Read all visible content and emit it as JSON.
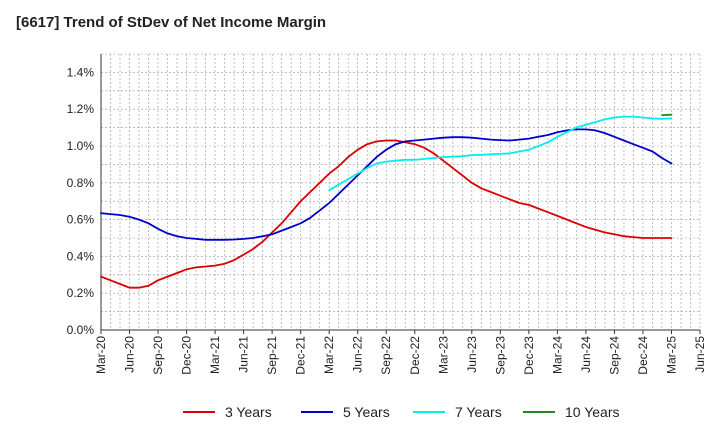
{
  "chart_data": {
    "type": "line",
    "title": "[6617]  Trend of StDev of Net Income Margin",
    "xlabel": "",
    "ylabel": "",
    "ylim": [
      0,
      1.5
    ],
    "yticks": [
      0.0,
      0.2,
      0.4,
      0.6,
      0.8,
      1.0,
      1.2,
      1.4
    ],
    "ytick_labels": [
      "0.0%",
      "0.2%",
      "0.4%",
      "0.6%",
      "0.8%",
      "1.0%",
      "1.2%",
      "1.4%"
    ],
    "x_tick_labels": [
      "Mar-20",
      "Jun-20",
      "Sep-20",
      "Dec-20",
      "Mar-21",
      "Jun-21",
      "Sep-21",
      "Dec-21",
      "Mar-22",
      "Jun-22",
      "Sep-22",
      "Dec-22",
      "Mar-23",
      "Jun-23",
      "Sep-23",
      "Dec-23",
      "Mar-24",
      "Jun-24",
      "Sep-24",
      "Dec-24",
      "Mar-25",
      "Jun-25"
    ],
    "grid": true,
    "legend_position": "bottom",
    "series": [
      {
        "name": "3 Years",
        "color": "#dd0000",
        "x": [
          "Mar-20",
          "Apr-20",
          "May-20",
          "Jun-20",
          "Jul-20",
          "Aug-20",
          "Sep-20",
          "Oct-20",
          "Nov-20",
          "Dec-20",
          "Jan-21",
          "Feb-21",
          "Mar-21",
          "Apr-21",
          "May-21",
          "Jun-21",
          "Jul-21",
          "Aug-21",
          "Sep-21",
          "Oct-21",
          "Nov-21",
          "Dec-21",
          "Jan-22",
          "Feb-22",
          "Mar-22",
          "Apr-22",
          "May-22",
          "Jun-22",
          "Jul-22",
          "Aug-22",
          "Sep-22",
          "Oct-22",
          "Nov-22",
          "Dec-22",
          "Jan-23",
          "Feb-23",
          "Mar-23",
          "Apr-23",
          "May-23",
          "Jun-23",
          "Jul-23",
          "Aug-23",
          "Sep-23",
          "Oct-23",
          "Nov-23",
          "Dec-23",
          "Jan-24",
          "Feb-24",
          "Mar-24",
          "Apr-24",
          "May-24",
          "Jun-24",
          "Jul-24",
          "Aug-24",
          "Sep-24",
          "Oct-24",
          "Nov-24",
          "Dec-24",
          "Jan-25",
          "Feb-25",
          "Mar-25"
        ],
        "values": [
          0.29,
          0.27,
          0.25,
          0.23,
          0.23,
          0.24,
          0.27,
          0.29,
          0.31,
          0.33,
          0.34,
          0.345,
          0.35,
          0.36,
          0.38,
          0.41,
          0.44,
          0.48,
          0.53,
          0.58,
          0.64,
          0.7,
          0.75,
          0.8,
          0.85,
          0.89,
          0.94,
          0.98,
          1.01,
          1.025,
          1.03,
          1.03,
          1.02,
          1.01,
          0.99,
          0.96,
          0.92,
          0.88,
          0.84,
          0.8,
          0.77,
          0.75,
          0.73,
          0.71,
          0.69,
          0.68,
          0.66,
          0.64,
          0.62,
          0.6,
          0.58,
          0.56,
          0.545,
          0.53,
          0.52,
          0.51,
          0.505,
          0.5,
          0.5,
          0.5,
          0.5
        ]
      },
      {
        "name": "5 Years",
        "color": "#0000cc",
        "x": [
          "Mar-20",
          "Apr-20",
          "May-20",
          "Jun-20",
          "Jul-20",
          "Aug-20",
          "Sep-20",
          "Oct-20",
          "Nov-20",
          "Dec-20",
          "Jan-21",
          "Feb-21",
          "Mar-21",
          "Apr-21",
          "May-21",
          "Jun-21",
          "Jul-21",
          "Aug-21",
          "Sep-21",
          "Oct-21",
          "Nov-21",
          "Dec-21",
          "Jan-22",
          "Feb-22",
          "Mar-22",
          "Apr-22",
          "May-22",
          "Jun-22",
          "Jul-22",
          "Aug-22",
          "Sep-22",
          "Oct-22",
          "Nov-22",
          "Dec-22",
          "Jan-23",
          "Feb-23",
          "Mar-23",
          "Apr-23",
          "May-23",
          "Jun-23",
          "Jul-23",
          "Aug-23",
          "Sep-23",
          "Oct-23",
          "Nov-23",
          "Dec-23",
          "Jan-24",
          "Feb-24",
          "Mar-24",
          "Apr-24",
          "May-24",
          "Jun-24",
          "Jul-24",
          "Aug-24",
          "Sep-24",
          "Oct-24",
          "Nov-24",
          "Dec-24",
          "Jan-25",
          "Feb-25",
          "Mar-25"
        ],
        "values": [
          0.635,
          0.63,
          0.625,
          0.615,
          0.6,
          0.58,
          0.55,
          0.525,
          0.51,
          0.5,
          0.495,
          0.49,
          0.49,
          0.49,
          0.492,
          0.495,
          0.5,
          0.51,
          0.52,
          0.54,
          0.56,
          0.58,
          0.61,
          0.65,
          0.69,
          0.74,
          0.79,
          0.84,
          0.89,
          0.94,
          0.98,
          1.01,
          1.025,
          1.03,
          1.035,
          1.04,
          1.045,
          1.048,
          1.048,
          1.045,
          1.04,
          1.035,
          1.032,
          1.03,
          1.035,
          1.04,
          1.05,
          1.06,
          1.075,
          1.085,
          1.09,
          1.09,
          1.085,
          1.07,
          1.05,
          1.03,
          1.01,
          0.99,
          0.97,
          0.935,
          0.905
        ]
      },
      {
        "name": "7 Years",
        "color": "#00eeee",
        "x": [
          "Mar-22",
          "Apr-22",
          "May-22",
          "Jun-22",
          "Jul-22",
          "Aug-22",
          "Sep-22",
          "Oct-22",
          "Nov-22",
          "Dec-22",
          "Jan-23",
          "Feb-23",
          "Mar-23",
          "Apr-23",
          "May-23",
          "Jun-23",
          "Jul-23",
          "Aug-23",
          "Sep-23",
          "Oct-23",
          "Nov-23",
          "Dec-23",
          "Jan-24",
          "Feb-24",
          "Mar-24",
          "Apr-24",
          "May-24",
          "Jun-24",
          "Jul-24",
          "Aug-24",
          "Sep-24",
          "Oct-24",
          "Nov-24",
          "Dec-24",
          "Jan-25",
          "Feb-25",
          "Mar-25"
        ],
        "values": [
          0.76,
          0.79,
          0.82,
          0.85,
          0.88,
          0.905,
          0.915,
          0.92,
          0.925,
          0.925,
          0.93,
          0.935,
          0.94,
          0.942,
          0.945,
          0.95,
          0.952,
          0.955,
          0.957,
          0.96,
          0.97,
          0.98,
          1.0,
          1.02,
          1.05,
          1.075,
          1.1,
          1.115,
          1.13,
          1.145,
          1.155,
          1.16,
          1.16,
          1.155,
          1.15,
          1.148,
          1.15
        ]
      },
      {
        "name": "10 Years",
        "color": "#228822",
        "x": [
          "Feb-25",
          "Mar-25"
        ],
        "values": [
          1.168,
          1.17
        ]
      }
    ]
  }
}
